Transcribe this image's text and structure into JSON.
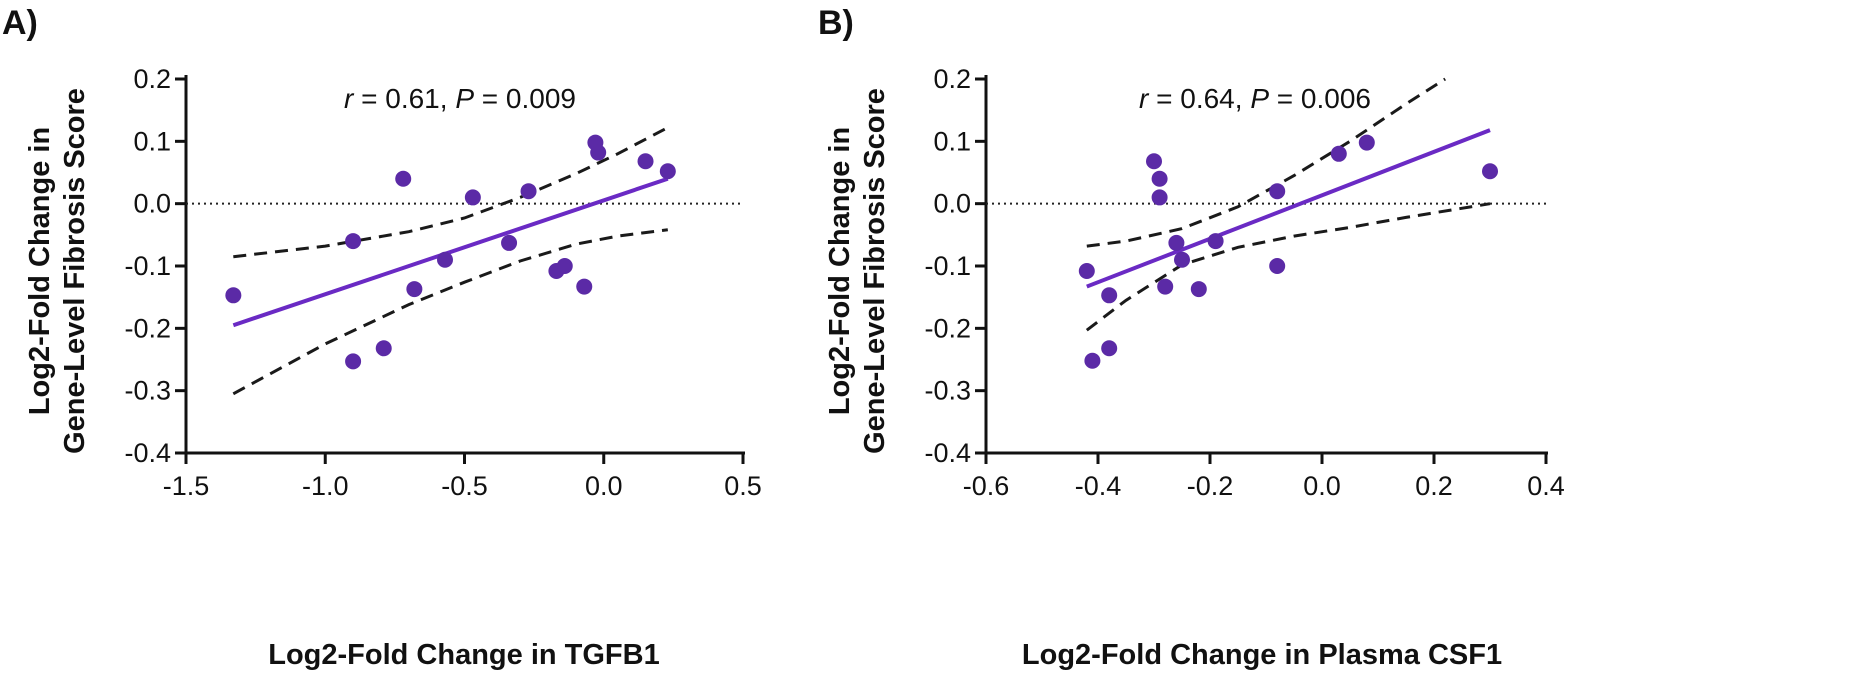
{
  "chart_data": [
    {
      "type": "scatter",
      "panel_label": "A)",
      "annotation": {
        "r_label": "r",
        "r_text": " = 0.61, ",
        "p_label": "P",
        "p_text": " = 0.009"
      },
      "xlabel": "Log2-Fold Change in TGFB1",
      "ylabel_line1": "Log2-Fold Change in",
      "ylabel_line2": "Gene-Level Fibrosis Score",
      "xlim": [
        -1.5,
        0.5
      ],
      "ylim": [
        -0.4,
        0.2
      ],
      "x_ticks": [
        -1.5,
        -1.0,
        -0.5,
        0.0,
        0.5
      ],
      "x_tick_labels": [
        "-1.5",
        "-1.0",
        "-0.5",
        "0.0",
        "0.5"
      ],
      "y_ticks": [
        -0.4,
        -0.3,
        -0.2,
        -0.1,
        0.0,
        0.1,
        0.2
      ],
      "y_tick_labels": [
        "-0.4",
        "-0.3",
        "-0.2",
        "-0.1",
        "0.0",
        "0.1",
        "0.2"
      ],
      "reference_line_y": 0.0,
      "points": [
        {
          "x": -1.33,
          "y": -0.147
        },
        {
          "x": -0.9,
          "y": -0.06
        },
        {
          "x": -0.9,
          "y": -0.253
        },
        {
          "x": -0.79,
          "y": -0.232
        },
        {
          "x": -0.72,
          "y": 0.04
        },
        {
          "x": -0.68,
          "y": -0.137
        },
        {
          "x": -0.57,
          "y": -0.09
        },
        {
          "x": -0.47,
          "y": 0.01
        },
        {
          "x": -0.34,
          "y": -0.063
        },
        {
          "x": -0.27,
          "y": 0.02
        },
        {
          "x": -0.17,
          "y": -0.108
        },
        {
          "x": -0.14,
          "y": -0.1
        },
        {
          "x": -0.07,
          "y": -0.133
        },
        {
          "x": -0.03,
          "y": 0.098
        },
        {
          "x": -0.02,
          "y": 0.082
        },
        {
          "x": 0.15,
          "y": 0.068
        },
        {
          "x": 0.23,
          "y": 0.052
        }
      ],
      "fit_line": {
        "x": [
          -1.33,
          0.23
        ],
        "y": [
          -0.195,
          0.04
        ]
      },
      "ci_upper": {
        "x": [
          -1.33,
          -1.0,
          -0.7,
          -0.5,
          -0.3,
          -0.1,
          0.05,
          0.23
        ],
        "y": [
          -0.085,
          -0.068,
          -0.045,
          -0.023,
          0.01,
          0.048,
          0.08,
          0.122
        ]
      },
      "ci_lower": {
        "x": [
          -1.33,
          -1.0,
          -0.7,
          -0.5,
          -0.3,
          -0.1,
          0.05,
          0.23
        ],
        "y": [
          -0.305,
          -0.225,
          -0.162,
          -0.126,
          -0.092,
          -0.065,
          -0.052,
          -0.042
        ]
      },
      "colors": {
        "points": "#5b2aa6",
        "fit": "#6a2ac4",
        "ci": "#1a1a1a",
        "axes": "#111111"
      }
    },
    {
      "type": "scatter",
      "panel_label": "B)",
      "annotation": {
        "r_label": "r",
        "r_text": " = 0.64, ",
        "p_label": "P",
        "p_text": " = 0.006"
      },
      "xlabel": "Log2-Fold Change in Plasma CSF1",
      "ylabel_line1": "Log2-Fold Change in",
      "ylabel_line2": "Gene-Level Fibrosis Score",
      "xlim": [
        -0.6,
        0.4
      ],
      "ylim": [
        -0.4,
        0.2
      ],
      "x_ticks": [
        -0.6,
        -0.4,
        -0.2,
        0.0,
        0.2,
        0.4
      ],
      "x_tick_labels": [
        "-0.6",
        "-0.4",
        "-0.2",
        "0.0",
        "0.2",
        "0.4"
      ],
      "y_ticks": [
        -0.4,
        -0.3,
        -0.2,
        -0.1,
        0.0,
        0.1,
        0.2
      ],
      "y_tick_labels": [
        "-0.4",
        "-0.3",
        "-0.2",
        "-0.1",
        "0.0",
        "0.1",
        "0.2"
      ],
      "reference_line_y": 0.0,
      "points": [
        {
          "x": -0.42,
          "y": -0.108
        },
        {
          "x": -0.41,
          "y": -0.252
        },
        {
          "x": -0.38,
          "y": -0.147
        },
        {
          "x": -0.38,
          "y": -0.232
        },
        {
          "x": -0.3,
          "y": 0.068
        },
        {
          "x": -0.29,
          "y": 0.04
        },
        {
          "x": -0.29,
          "y": 0.01
        },
        {
          "x": -0.28,
          "y": -0.133
        },
        {
          "x": -0.26,
          "y": -0.063
        },
        {
          "x": -0.25,
          "y": -0.09
        },
        {
          "x": -0.22,
          "y": -0.137
        },
        {
          "x": -0.19,
          "y": -0.06
        },
        {
          "x": -0.08,
          "y": 0.02
        },
        {
          "x": -0.08,
          "y": -0.1
        },
        {
          "x": 0.03,
          "y": 0.08
        },
        {
          "x": 0.08,
          "y": 0.098
        },
        {
          "x": 0.3,
          "y": 0.052
        }
      ],
      "fit_line": {
        "x": [
          -0.42,
          0.3
        ],
        "y": [
          -0.133,
          0.118
        ]
      },
      "ci_upper": {
        "x": [
          -0.42,
          -0.35,
          -0.25,
          -0.15,
          -0.05,
          0.05,
          0.15,
          0.22
        ],
        "y": [
          -0.068,
          -0.06,
          -0.04,
          -0.005,
          0.045,
          0.1,
          0.16,
          0.2
        ]
      },
      "ci_lower": {
        "x": [
          -0.42,
          -0.35,
          -0.25,
          -0.15,
          -0.05,
          0.05,
          0.15,
          0.3
        ],
        "y": [
          -0.203,
          -0.155,
          -0.098,
          -0.07,
          -0.052,
          -0.038,
          -0.022,
          0.0
        ]
      },
      "colors": {
        "points": "#5b2aa6",
        "fit": "#6a2ac4",
        "ci": "#1a1a1a",
        "axes": "#111111"
      }
    }
  ]
}
